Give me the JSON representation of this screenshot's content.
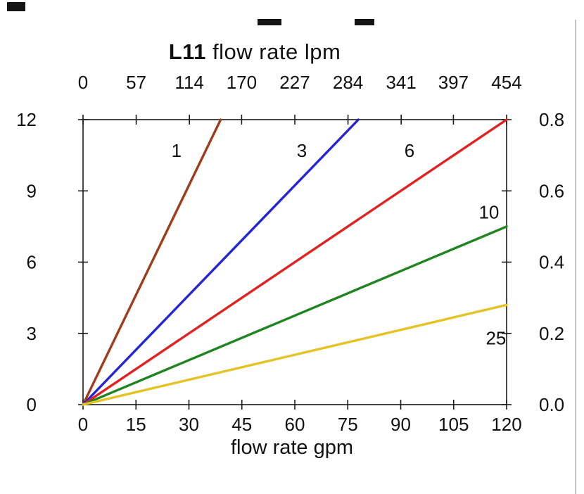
{
  "page": {
    "title": {
      "model": "L11",
      "rest": " flow rate lpm"
    }
  },
  "chart_data": {
    "type": "line",
    "title": "L11 flow rate lpm",
    "x_axis_top": {
      "label": "flow rate lpm",
      "ticks": [
        "0",
        "57",
        "114",
        "170",
        "227",
        "284",
        "341",
        "397",
        "454"
      ],
      "range": [
        0,
        454
      ]
    },
    "x_axis_bottom": {
      "label": "flow rate gpm",
      "ticks": [
        "0",
        "15",
        "30",
        "45",
        "60",
        "75",
        "90",
        "105",
        "120"
      ],
      "range": [
        0,
        120
      ]
    },
    "y_axis_left": {
      "ticks": [
        "0",
        "3",
        "6",
        "9",
        "12"
      ],
      "range": [
        0,
        12
      ]
    },
    "y_axis_right": {
      "ticks": [
        "0.0",
        "0.2",
        "0.4",
        "0.6",
        "0.8"
      ],
      "range": [
        0,
        0.8
      ]
    },
    "grid": false,
    "legend": "labels on lines",
    "series": [
      {
        "name": "1",
        "label": "1",
        "color": "#9e3c1c",
        "points": [
          [
            0,
            0
          ],
          [
            39,
            12
          ]
        ],
        "label_pos": [
          26.5,
          10.7
        ]
      },
      {
        "name": "3",
        "label": "3",
        "color": "#2525d8",
        "points": [
          [
            0,
            0
          ],
          [
            78,
            12
          ]
        ],
        "label_pos": [
          62,
          10.7
        ]
      },
      {
        "name": "6",
        "label": "6",
        "color": "#e22121",
        "points": [
          [
            0,
            0
          ],
          [
            120,
            12
          ]
        ],
        "label_pos": [
          92.5,
          10.7
        ]
      },
      {
        "name": "10",
        "label": "10",
        "color": "#208420",
        "points": [
          [
            0,
            0
          ],
          [
            120,
            7.5
          ]
        ],
        "label_pos": [
          115,
          8.1
        ]
      },
      {
        "name": "25",
        "label": "25",
        "color": "#e4c424",
        "points": [
          [
            0,
            0
          ],
          [
            120,
            4.2
          ]
        ],
        "label_pos": [
          117,
          2.8
        ]
      }
    ]
  },
  "decorations": {
    "redaction_color": "#141414",
    "window_edge_color": "#c4c4c4"
  }
}
